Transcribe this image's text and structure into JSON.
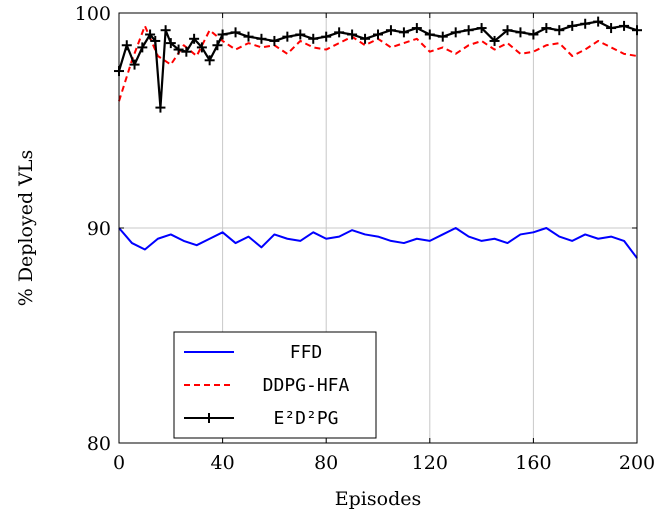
{
  "chart_data": {
    "type": "line",
    "title": "",
    "xlabel": "Episodes",
    "ylabel": "% Deployed VLs",
    "xlim": [
      0,
      200
    ],
    "ylim": [
      80,
      100
    ],
    "xticks": [
      "0",
      "40",
      "80",
      "120",
      "160",
      "200"
    ],
    "yticks": [
      "80",
      "90",
      "100"
    ],
    "grid": "vertical and y=90",
    "legend_position": "bottom-left",
    "series": [
      {
        "name": "FFD",
        "color": "#0000ff",
        "style": "solid",
        "x": [
          0,
          5,
          10,
          15,
          20,
          25,
          30,
          35,
          40,
          45,
          50,
          55,
          60,
          65,
          70,
          75,
          80,
          85,
          90,
          95,
          100,
          105,
          110,
          115,
          120,
          125,
          130,
          135,
          140,
          145,
          150,
          155,
          160,
          165,
          170,
          175,
          180,
          185,
          190,
          195,
          200
        ],
        "values": [
          90.0,
          89.3,
          89.0,
          89.5,
          89.7,
          89.4,
          89.2,
          89.5,
          89.8,
          89.3,
          89.6,
          89.1,
          89.7,
          89.5,
          89.4,
          89.8,
          89.5,
          89.6,
          89.9,
          89.7,
          89.6,
          89.4,
          89.3,
          89.5,
          89.4,
          89.7,
          90.0,
          89.6,
          89.4,
          89.5,
          89.3,
          89.7,
          89.8,
          90.0,
          89.6,
          89.4,
          89.7,
          89.5,
          89.6,
          89.4,
          88.6
        ]
      },
      {
        "name": "DDPG-HFA",
        "color": "#ff0000",
        "style": "dashed",
        "x": [
          0,
          5,
          10,
          15,
          20,
          25,
          30,
          35,
          40,
          45,
          50,
          55,
          60,
          65,
          70,
          75,
          80,
          85,
          90,
          95,
          100,
          105,
          110,
          115,
          120,
          125,
          130,
          135,
          140,
          145,
          150,
          155,
          160,
          165,
          170,
          175,
          180,
          185,
          190,
          195,
          200
        ],
        "values": [
          95.9,
          97.8,
          99.4,
          98.0,
          97.6,
          98.5,
          98.0,
          99.2,
          98.7,
          98.3,
          98.6,
          98.4,
          98.5,
          98.1,
          98.7,
          98.4,
          98.3,
          98.6,
          98.9,
          98.5,
          98.8,
          98.4,
          98.6,
          98.8,
          98.2,
          98.4,
          98.1,
          98.5,
          98.7,
          98.3,
          98.6,
          98.1,
          98.2,
          98.5,
          98.6,
          98.0,
          98.3,
          98.7,
          98.4,
          98.1,
          98.0
        ]
      },
      {
        "name": "E²D²PG",
        "color": "#000000",
        "style": "solid-plus",
        "x": [
          0,
          3,
          6,
          9,
          12,
          14,
          16,
          18,
          20,
          23,
          26,
          29,
          32,
          35,
          38,
          40,
          45,
          50,
          55,
          60,
          65,
          70,
          75,
          80,
          85,
          90,
          95,
          100,
          105,
          110,
          115,
          120,
          125,
          130,
          135,
          140,
          145,
          150,
          155,
          160,
          165,
          170,
          175,
          180,
          185,
          190,
          195,
          200
        ],
        "values": [
          97.3,
          98.5,
          97.6,
          98.4,
          99.0,
          98.7,
          95.6,
          99.2,
          98.6,
          98.3,
          98.2,
          98.8,
          98.4,
          97.8,
          98.5,
          99.0,
          99.1,
          98.9,
          98.8,
          98.7,
          98.9,
          99.0,
          98.8,
          98.9,
          99.1,
          99.0,
          98.8,
          99.0,
          99.2,
          99.1,
          99.3,
          99.0,
          98.9,
          99.1,
          99.2,
          99.3,
          98.7,
          99.2,
          99.1,
          99.0,
          99.3,
          99.2,
          99.4,
          99.5,
          99.6,
          99.3,
          99.4,
          99.2
        ]
      }
    ]
  }
}
